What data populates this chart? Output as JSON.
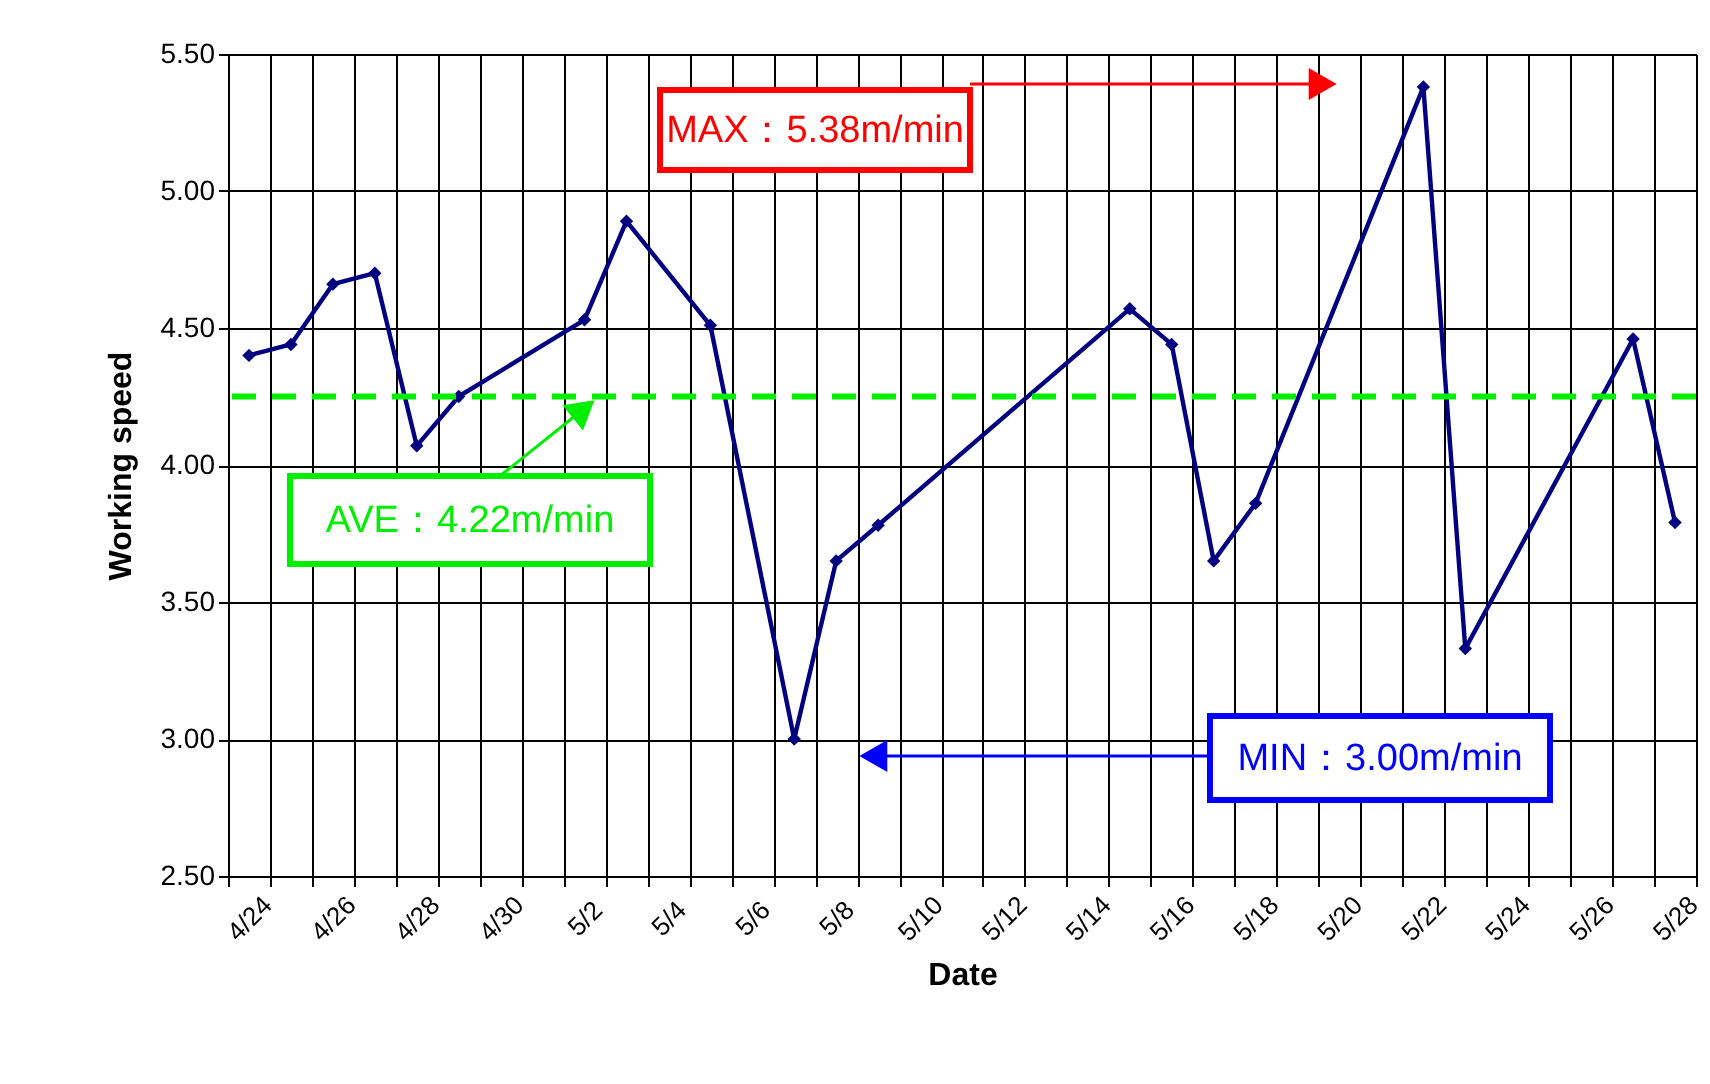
{
  "chart_data": {
    "type": "line",
    "xlabel": "Date",
    "ylabel": "Working speed",
    "categories": [
      "4/24",
      null,
      "4/26",
      null,
      "4/28",
      null,
      "4/30",
      null,
      "5/2",
      null,
      "5/4",
      null,
      "5/6",
      null,
      "5/8",
      null,
      "5/10",
      null,
      "5/12",
      null,
      "5/14",
      null,
      "5/16",
      null,
      "5/18",
      null,
      "5/20",
      null,
      "5/22",
      null,
      "5/24",
      null,
      "5/26",
      null,
      "5/28"
    ],
    "series": [
      {
        "color": "#000080",
        "values": [
          4.4,
          4.44,
          4.66,
          4.7,
          4.07,
          4.25,
          null,
          null,
          4.53,
          4.89,
          null,
          4.51,
          null,
          3.0,
          3.65,
          3.78,
          null,
          null,
          null,
          null,
          null,
          4.57,
          4.44,
          3.65,
          3.86,
          null,
          null,
          null,
          5.38,
          3.33,
          null,
          null,
          null,
          4.46,
          3.79
        ]
      }
    ],
    "ylim": [
      2.5,
      5.5
    ],
    "yticks": [
      {
        "value": 2.5,
        "label": "2.50"
      },
      {
        "value": 3.0,
        "label": "3.00"
      },
      {
        "value": 3.5,
        "label": "3.50"
      },
      {
        "value": 4.0,
        "label": "4.00"
      },
      {
        "value": 4.5,
        "label": "4.50"
      },
      {
        "value": 5.0,
        "label": "5.00"
      },
      {
        "value": 5.5,
        "label": "5.50"
      }
    ],
    "ref_lines": [
      {
        "axis": "y",
        "value": 4.25,
        "label": "AVE：4.22m/min",
        "color": "#00ee00",
        "line_style": "dashed"
      }
    ],
    "annotations": [
      "MAX：5.38m/min",
      "MIN：3.00m/min"
    ],
    "grid": true,
    "marker": "diamond",
    "line_style": "solid"
  }
}
